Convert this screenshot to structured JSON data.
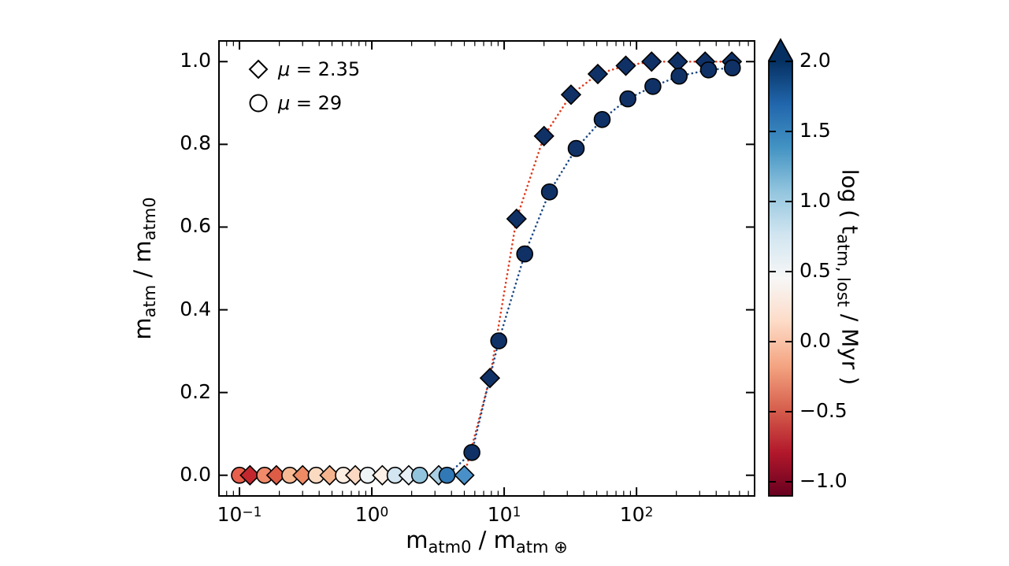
{
  "page": {
    "background": "#ffffff"
  },
  "legend": {
    "items": [
      {
        "symbol": "μ",
        "eq": " = 2.35",
        "marker": "diamond"
      },
      {
        "symbol": "μ",
        "eq": " = 29",
        "marker": "circle"
      }
    ]
  },
  "axes": {
    "xlabel_parts": [
      {
        "t": "m"
      },
      {
        "s": "atm0"
      },
      {
        "t": " / m"
      },
      {
        "s": "atm ⊕"
      }
    ],
    "ylabel_parts": [
      {
        "t": "m"
      },
      {
        "s": "atm"
      },
      {
        "t": " / m"
      },
      {
        "s": "atm0"
      }
    ],
    "x_ticks": [
      {
        "value": 0.1,
        "base": "10",
        "exp": "−1"
      },
      {
        "value": 1,
        "base": "10",
        "exp": "0"
      },
      {
        "value": 10,
        "base": "10",
        "exp": "1"
      },
      {
        "value": 100,
        "base": "10",
        "exp": "2"
      }
    ],
    "y_ticks": [
      {
        "value": 0.0,
        "label": "0.0"
      },
      {
        "value": 0.2,
        "label": "0.2"
      },
      {
        "value": 0.4,
        "label": "0.4"
      },
      {
        "value": 0.6,
        "label": "0.6"
      },
      {
        "value": 0.8,
        "label": "0.8"
      },
      {
        "value": 1.0,
        "label": "1.0"
      }
    ]
  },
  "colorbar": {
    "label_parts": [
      {
        "t": "log ( t"
      },
      {
        "s": "atm, lost"
      },
      {
        "t": " / Myr )"
      }
    ],
    "ticks": [
      {
        "value": 2.0,
        "label": "2.0"
      },
      {
        "value": 1.5,
        "label": "1.5"
      },
      {
        "value": 1.0,
        "label": "1.0"
      },
      {
        "value": 0.5,
        "label": "0.5"
      },
      {
        "value": 0.0,
        "label": "0.0"
      },
      {
        "value": -0.5,
        "label": "−0.5"
      },
      {
        "value": -1.0,
        "label": "−1.0"
      }
    ],
    "extend": "max",
    "colormap": "RdBu",
    "gradient_top_to_bottom": [
      "#053061",
      "#2166ac",
      "#4393c3",
      "#92c5de",
      "#d1e5f0",
      "#f7f7f7",
      "#fddbc7",
      "#f4a582",
      "#d6604d",
      "#b2182b",
      "#67001f"
    ]
  },
  "chart_data": {
    "type": "scatter",
    "title": "",
    "xlabel": "m_atm0 / m_atm⊕",
    "ylabel": "m_atm / m_atm0",
    "x_scale": "log",
    "y_scale": "linear",
    "xlim": [
      0.07,
      780
    ],
    "ylim": [
      -0.05,
      1.05
    ],
    "grid": false,
    "legend_position": "upper left",
    "colorbar_label": "log ( t_atm,lost / Myr )",
    "colorbar_range": [
      -1.0,
      2.0
    ],
    "marker_edge_color": "#000000",
    "line_style": "dotted",
    "series": [
      {
        "name": "mu = 2.35",
        "marker": "diamond",
        "line_color": "#e03a1d",
        "x": [
          0.12,
          0.19,
          0.3,
          0.48,
          0.75,
          1.2,
          1.9,
          3.2,
          5.0,
          7.8,
          12.4,
          20,
          32,
          51,
          83,
          130,
          205,
          330,
          525
        ],
        "y": [
          0,
          0,
          0,
          0,
          0,
          0,
          0,
          0,
          0,
          0.235,
          0.62,
          0.82,
          0.92,
          0.97,
          0.99,
          1.0,
          1.0,
          1.0,
          1.0
        ],
        "point_colors": [
          "#c3272e",
          "#dd5c46",
          "#ee8a64",
          "#f6b48e",
          "#fbd8c2",
          "#fdf0e6",
          "#e7f0f6",
          "#a9cfe4",
          "#4a90c8",
          "#0f3166",
          "#0f3166",
          "#0f3166",
          "#0f3166",
          "#0f3166",
          "#0f3166",
          "#0f3166",
          "#0f3166",
          "#0f3166",
          "#0f3166"
        ]
      },
      {
        "name": "mu = 29",
        "marker": "circle",
        "line_color": "#1c4886",
        "x": [
          0.1,
          0.155,
          0.24,
          0.38,
          0.61,
          0.93,
          1.5,
          2.3,
          3.7,
          5.7,
          9.1,
          14.3,
          22,
          35,
          55,
          86,
          133,
          210,
          350,
          530
        ],
        "y": [
          0,
          0,
          0,
          0,
          0,
          0,
          0,
          0,
          0,
          0.055,
          0.325,
          0.535,
          0.685,
          0.79,
          0.86,
          0.91,
          0.94,
          0.965,
          0.98,
          0.985
        ],
        "point_colors": [
          "#e8604c",
          "#f08a6a",
          "#f7ba94",
          "#fbdac2",
          "#fdeee2",
          "#eef3f5",
          "#d2e5f0",
          "#92c4de",
          "#3079b6",
          "#0f3166",
          "#0f3166",
          "#0f3166",
          "#0f3166",
          "#0f3166",
          "#0f3166",
          "#0f3166",
          "#0f3166",
          "#0f3166",
          "#0f3166",
          "#0f3166"
        ]
      }
    ]
  }
}
